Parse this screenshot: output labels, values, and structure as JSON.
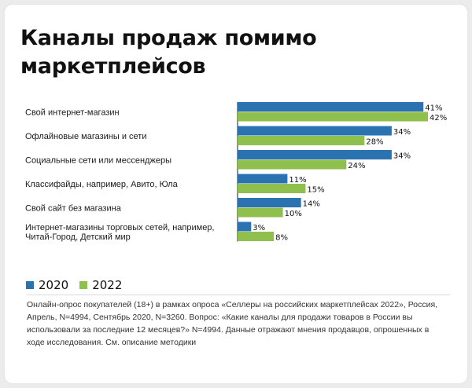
{
  "title": "Каналы продаж помимо маркетплейсов",
  "footnote": "Онлайн-опрос покупателей (18+) в рамках опроса «Селлеры на российских маркетплейсах 2022», Россия, Апрель, N=4994, Сентябрь 2020, N=3260. Вопрос: «Какие каналы для продажи товаров в России вы использовали за последние 12 месяцев?» N=4994. Данные отражают мнения продавцов, опрошенных в ходе исследования. См. описание методики",
  "colors": {
    "2020": "#2a73b0",
    "2022": "#8fbf4d"
  },
  "chart_data": {
    "type": "bar",
    "orientation": "horizontal",
    "title": "Каналы продаж помимо маркетплейсов",
    "categories": [
      [
        "Свой интернет-магазин"
      ],
      [
        "Офлайновые магазины и сети"
      ],
      [
        "Социальные сети или мессенджеры"
      ],
      [
        "Классифайды, например, Авито, Юла"
      ],
      [
        "Свой сайт без магазина"
      ],
      [
        "Интернет-магазины торговых сетей, например,",
        "Читай-Город, Детский мир"
      ]
    ],
    "series": [
      {
        "name": "2020",
        "values": [
          41,
          34,
          34,
          11,
          14,
          3
        ]
      },
      {
        "name": "2022",
        "values": [
          42,
          28,
          24,
          15,
          10,
          8
        ]
      }
    ],
    "value_suffix": "%",
    "xlim": [
      0,
      42
    ],
    "legend_position": "bottom-left",
    "grid": false
  }
}
